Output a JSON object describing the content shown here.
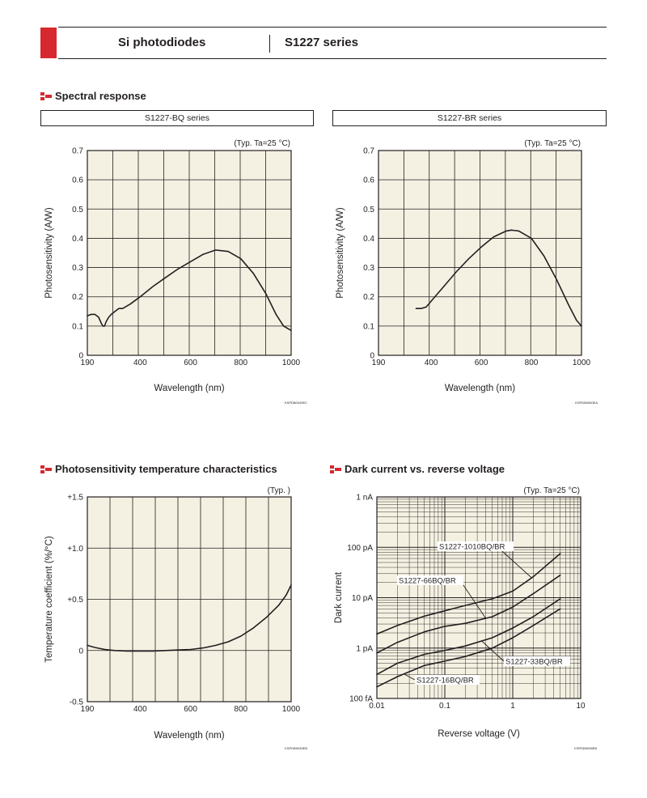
{
  "header": {
    "left_title": "Si photodiodes",
    "right_title": "S1227 series"
  },
  "sections": {
    "spectral": "Spectral response",
    "tempchar": "Photosensitivity temperature characteristics",
    "darkcurrent": "Dark current vs. reverse voltage"
  },
  "chart_data": [
    {
      "id": "bq",
      "type": "line",
      "title": "S1227-BQ series",
      "note": "(Typ. Ta=25 °C)",
      "xlabel": "Wavelength (nm)",
      "ylabel": "Photosensitivity  (A/W)",
      "xlim": [
        190,
        1000
      ],
      "ylim": [
        0,
        0.7
      ],
      "xticks": [
        190,
        400,
        600,
        800,
        1000
      ],
      "xtick_labels": [
        "190",
        "400",
        "600",
        "800",
        "1000"
      ],
      "yticks": [
        0,
        0.1,
        0.2,
        0.3,
        0.4,
        0.5,
        0.6,
        0.7
      ],
      "ytick_labels": [
        "0",
        "0.1",
        "0.2",
        "0.3",
        "0.4",
        "0.5",
        "0.6",
        "0.7"
      ],
      "grid": true,
      "code": "KSPDB0049EC",
      "series": [
        {
          "x": [
            190,
            205,
            220,
            235,
            245,
            252,
            258,
            265,
            275,
            285,
            300,
            315,
            330,
            360,
            400,
            450,
            500,
            550,
            600,
            650,
            700,
            750,
            800,
            850,
            900,
            940,
            970,
            1000
          ],
          "y": [
            0.135,
            0.14,
            0.14,
            0.13,
            0.11,
            0.1,
            0.1,
            0.115,
            0.13,
            0.14,
            0.15,
            0.16,
            0.16,
            0.175,
            0.2,
            0.235,
            0.265,
            0.295,
            0.32,
            0.345,
            0.36,
            0.355,
            0.33,
            0.28,
            0.21,
            0.14,
            0.1,
            0.085
          ]
        }
      ]
    },
    {
      "id": "br",
      "type": "line",
      "title": "S1227-BR series",
      "note": "(Typ. Ta=25 °C)",
      "xlabel": "Wavelength (nm)",
      "ylabel": "Photosensitivity  (A/W)",
      "xlim": [
        190,
        1000
      ],
      "ylim": [
        0,
        0.7
      ],
      "xticks": [
        190,
        400,
        600,
        800,
        1000
      ],
      "xtick_labels": [
        "190",
        "400",
        "600",
        "800",
        "1000"
      ],
      "yticks": [
        0,
        0.1,
        0.2,
        0.3,
        0.4,
        0.5,
        0.6,
        0.7
      ],
      "ytick_labels": [
        "0",
        "0.1",
        "0.2",
        "0.3",
        "0.4",
        "0.5",
        "0.6",
        "0.7"
      ],
      "grid": true,
      "code": "KSPDB0050EA",
      "series": [
        {
          "x": [
            340,
            360,
            380,
            400,
            450,
            500,
            550,
            600,
            650,
            700,
            720,
            750,
            800,
            850,
            900,
            950,
            980,
            1000
          ],
          "y": [
            0.16,
            0.16,
            0.165,
            0.185,
            0.235,
            0.285,
            0.33,
            0.37,
            0.405,
            0.425,
            0.428,
            0.425,
            0.4,
            0.34,
            0.26,
            0.17,
            0.12,
            0.1
          ]
        }
      ]
    },
    {
      "id": "temp",
      "type": "line",
      "title": "",
      "note": "(Typ. )",
      "xlabel": "Wavelength (nm)",
      "ylabel": "Temperature coefficient (%/°C)",
      "xlim": [
        190,
        1000
      ],
      "ylim": [
        -0.5,
        1.5
      ],
      "xticks": [
        190,
        400,
        600,
        800,
        1000
      ],
      "xtick_labels": [
        "190",
        "400",
        "600",
        "800",
        "1000"
      ],
      "yticks": [
        -0.5,
        0,
        0.5,
        1.0,
        1.5
      ],
      "ytick_labels": [
        "-0.5",
        "0",
        "+0.5",
        "+1.0",
        "+1.5"
      ],
      "grid": true,
      "code": "KSPDB0030EB",
      "series": [
        {
          "x": [
            190,
            220,
            260,
            300,
            350,
            400,
            450,
            500,
            550,
            600,
            650,
            700,
            750,
            800,
            850,
            900,
            950,
            980,
            1000
          ],
          "y": [
            0.05,
            0.03,
            0.01,
            0.0,
            -0.005,
            -0.005,
            -0.005,
            0.0,
            0.005,
            0.01,
            0.025,
            0.05,
            0.085,
            0.14,
            0.22,
            0.32,
            0.44,
            0.54,
            0.64
          ]
        }
      ]
    },
    {
      "id": "dark",
      "type": "line",
      "title": "",
      "note": "(Typ. Ta=25 °C)",
      "xlabel": "Reverse voltage (V)",
      "ylabel": "Dark current",
      "xscale": "log",
      "yscale": "log",
      "xlim": [
        0.01,
        10
      ],
      "ylim": [
        0.1,
        1000
      ],
      "xticks": [
        0.01,
        0.1,
        1,
        10
      ],
      "xtick_labels": [
        "0.01",
        "0.1",
        "1",
        "10"
      ],
      "yticks": [
        0.1,
        1,
        10,
        100,
        1000
      ],
      "ytick_labels": [
        "100 fA",
        "1 pA",
        "10 pA",
        "100 pA",
        "1 nA"
      ],
      "grid": true,
      "code": "KSPDB0096EB",
      "series": [
        {
          "name": "S1227-1010BQ/BR",
          "x": [
            0.01,
            0.02,
            0.05,
            0.1,
            0.2,
            0.5,
            1,
            2,
            5
          ],
          "y": [
            1.9,
            2.8,
            4.3,
            5.5,
            7.0,
            9.5,
            13.5,
            26,
            75
          ]
        },
        {
          "name": "S1227-66BQ/BR",
          "x": [
            0.01,
            0.02,
            0.05,
            0.1,
            0.2,
            0.5,
            1,
            2,
            5
          ],
          "y": [
            0.8,
            1.3,
            2.1,
            2.7,
            3.1,
            4.2,
            6.5,
            12,
            28
          ]
        },
        {
          "name": "S1227-33BQ/BR",
          "x": [
            0.01,
            0.02,
            0.05,
            0.1,
            0.2,
            0.5,
            1,
            2,
            5
          ],
          "y": [
            0.3,
            0.5,
            0.75,
            0.9,
            1.1,
            1.6,
            2.5,
            4.2,
            9.5
          ]
        },
        {
          "name": "S1227-16BQ/BR",
          "x": [
            0.01,
            0.02,
            0.05,
            0.1,
            0.2,
            0.5,
            1,
            2,
            5
          ],
          "y": [
            0.17,
            0.27,
            0.45,
            0.55,
            0.68,
            1.0,
            1.6,
            2.8,
            6.0
          ]
        }
      ],
      "labels": [
        {
          "text": "S1227-1010BQ/BR",
          "series": 0
        },
        {
          "text": "S1227-66BQ/BR",
          "series": 1
        },
        {
          "text": "S1227-33BQ/BR",
          "series": 2
        },
        {
          "text": "S1227-16BQ/BR",
          "series": 3
        }
      ]
    }
  ]
}
